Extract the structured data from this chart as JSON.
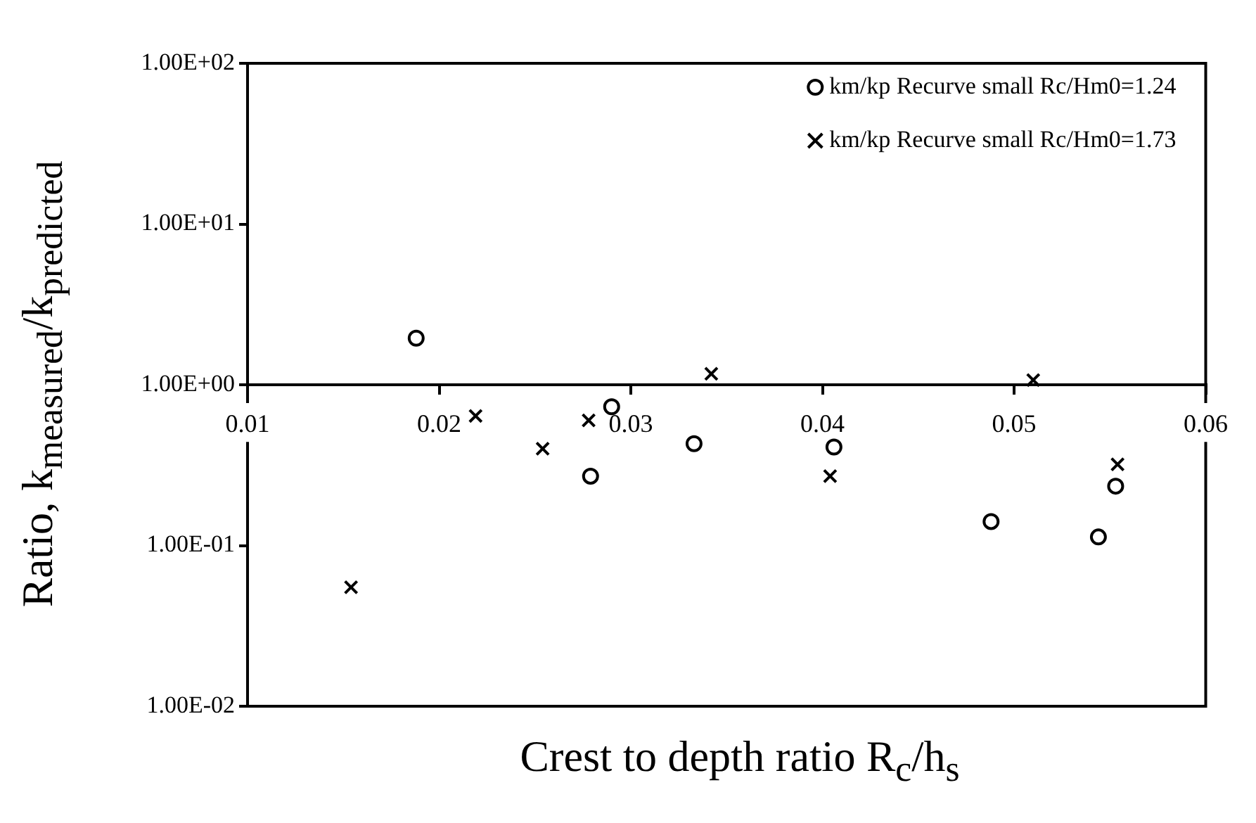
{
  "chart_data": {
    "type": "scatter",
    "xlabel": "Crest to depth ratio R$_{c}$/h$_{s}$",
    "ylabel": "Ratio, k$_{measured}$/k$_{predicted}$",
    "log": "y",
    "xlim": [
      0.01,
      0.06
    ],
    "xticks": [
      0.01,
      0.02,
      0.03,
      0.04,
      0.05,
      0.06
    ],
    "ylim": [
      0.01,
      100
    ],
    "yticks": [
      {
        "value": 0.01,
        "label": "1.00E-02"
      },
      {
        "value": 0.1,
        "label": "1.00E-01"
      },
      {
        "value": 1,
        "label": "1.00E+00"
      },
      {
        "value": 10,
        "label": "1.00E+01"
      },
      {
        "value": 100,
        "label": "1.00E+02"
      }
    ],
    "grid": false,
    "legend": "top right",
    "series": [
      {
        "name": "km/kp Recurve small Rc/Hm0=1.24",
        "color": "#000000",
        "marker": "circle",
        "x": [
          0.0188,
          0.029,
          0.0279,
          0.0333,
          0.0406,
          0.0488,
          0.0553,
          0.0544
        ],
        "values": [
          1.95,
          0.73,
          0.27,
          0.43,
          0.41,
          0.141,
          0.234,
          0.113
        ]
      },
      {
        "name": "km/kp Recurve small Rc/Hm0=1.73",
        "color": "#000000",
        "marker": "cross",
        "x": [
          0.0154,
          0.0219,
          0.0254,
          0.0278,
          0.0342,
          0.0404,
          0.051,
          0.0554
        ],
        "values": [
          0.055,
          0.64,
          0.4,
          0.6,
          1.17,
          0.27,
          1.07,
          0.32
        ]
      }
    ]
  }
}
